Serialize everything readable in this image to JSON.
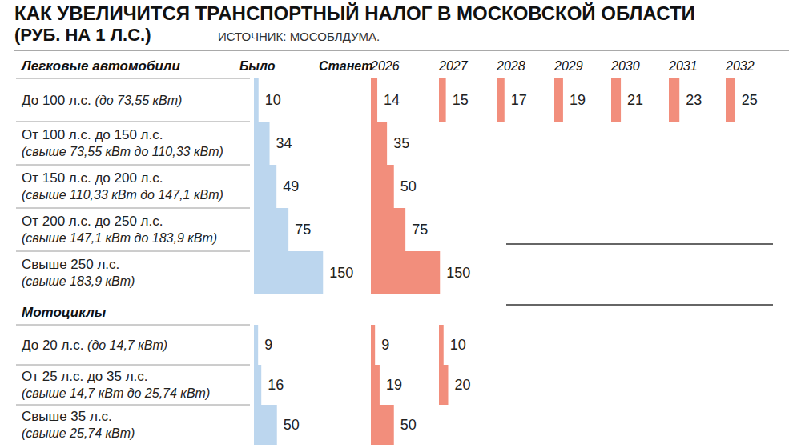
{
  "title": "КАК УВЕЛИЧИТСЯ ТРАНСПОРТНЫЙ НАЛОГ В МОСКОВСКОЙ ОБЛАСТИ",
  "subtitle": "(РУБ. НА 1 Л.С.)",
  "source": "ИСТОЧНИК: МОСОБЛДУМА.",
  "chart_data": [
    {
      "type": "bar",
      "title": "Легковые автомобили",
      "orientation": "horizontal",
      "data_labels": true,
      "tick_labels": false,
      "grid": false,
      "xlim": [
        0,
        200
      ],
      "annotations": [
        "Станет"
      ],
      "categories": [
        "До 100 л.с. (до 73,55 кВт)",
        "От 100 л.с. до 150 л.с.\n(свыше 73,55 кВт до 110,33 кВт)",
        "От 150 л.с. до 200 л.с.\n(свыше 110,33 кВт до 147,1 кВт)",
        "От 200 л.с. до 250 л.с.\n(свыше 147,1 кВт до 183,9 кВт)",
        "Свыше 250 л.с.\n(свыше 183,9 кВт)"
      ],
      "series": [
        {
          "name": "Было",
          "color": "#bcd6ee",
          "values": [
            10,
            34,
            49,
            75,
            150
          ]
        },
        {
          "name": "2026",
          "color": "#f28e7c",
          "values": [
            14,
            35,
            50,
            75,
            150
          ]
        },
        {
          "name": "2027",
          "color": "#f28e7c",
          "values": [
            15,
            null,
            null,
            null,
            null
          ]
        },
        {
          "name": "2028",
          "color": "#f28e7c",
          "values": [
            17,
            null,
            null,
            null,
            null
          ]
        },
        {
          "name": "2029",
          "color": "#f28e7c",
          "values": [
            19,
            null,
            null,
            null,
            null
          ]
        },
        {
          "name": "2030",
          "color": "#f28e7c",
          "values": [
            21,
            null,
            null,
            null,
            null
          ]
        },
        {
          "name": "2031",
          "color": "#f28e7c",
          "values": [
            23,
            null,
            null,
            null,
            null
          ]
        },
        {
          "name": "2032",
          "color": "#f28e7c",
          "values": [
            25,
            null,
            null,
            null,
            null
          ]
        }
      ]
    },
    {
      "type": "bar",
      "title": "Мотоциклы",
      "orientation": "horizontal",
      "data_labels": true,
      "tick_labels": false,
      "grid": false,
      "xlim": [
        0,
        200
      ],
      "categories": [
        "До 20 л.с. (до 14,7 кВт)",
        "От 25 л.с. до 35 л.с.\n(свыше 14,7 кВт до 25,74 кВт)",
        "Свыше 35 л.с.\n(свыше 25,74 кВт)"
      ],
      "series": [
        {
          "name": "Было",
          "color": "#bcd6ee",
          "values": [
            9,
            16,
            50
          ]
        },
        {
          "name": "2026",
          "color": "#f28e7c",
          "values": [
            9,
            19,
            50
          ]
        },
        {
          "name": "2027",
          "color": "#f28e7c",
          "values": [
            10,
            20,
            null
          ]
        }
      ]
    }
  ]
}
